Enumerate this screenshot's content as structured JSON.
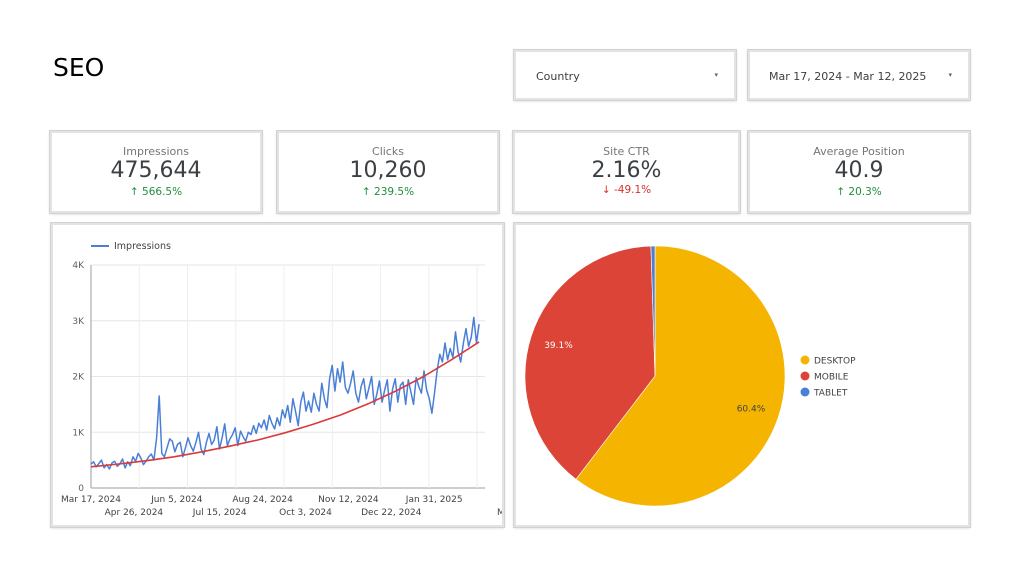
{
  "page": {
    "title": "SEO"
  },
  "filters": {
    "country": {
      "label": "Country"
    },
    "date_range": {
      "label": "Mar 17, 2024 - Mar 12, 2025"
    }
  },
  "scorecards": [
    {
      "label": "Impressions",
      "value": "475,644",
      "delta": "566.5%",
      "direction": "up"
    },
    {
      "label": "Clicks",
      "value": "10,260",
      "delta": "239.5%",
      "direction": "up"
    },
    {
      "label": "Site CTR",
      "value": "2.16%",
      "delta": "-49.1%",
      "direction": "down"
    },
    {
      "label": "Average Position",
      "value": "40.9",
      "delta": "20.3%",
      "direction": "up"
    }
  ],
  "colors": {
    "positive": "#1e8e3e",
    "negative": "#d93025"
  },
  "chart_data": [
    {
      "type": "line",
      "legend": [
        "Impressions"
      ],
      "legend_position": "top-left",
      "grid": true,
      "ylim": [
        0,
        4000
      ],
      "y_ticks": [
        "0",
        "1K",
        "2K",
        "3K",
        "4K"
      ],
      "x_ticks_row1": [
        "Mar 17, 2024",
        "Jun 5, 2024",
        "Aug 24, 2024",
        "Nov 12, 2024",
        "Jan 31, 2025"
      ],
      "x_ticks_row2": [
        "Apr 26, 2024",
        "Jul 15, 2024",
        "Oct 3, 2024",
        "Dec 22, 2024"
      ],
      "x_tick_truncated": "M",
      "series": [
        {
          "name": "Impressions",
          "color": "#4a7fd6",
          "values": [
            430,
            470,
            380,
            440,
            500,
            360,
            420,
            340,
            450,
            480,
            390,
            430,
            520,
            360,
            470,
            400,
            560,
            480,
            620,
            540,
            420,
            480,
            560,
            610,
            500,
            900,
            1650,
            620,
            560,
            720,
            880,
            840,
            650,
            780,
            820,
            560,
            720,
            900,
            760,
            660,
            820,
            1000,
            700,
            600,
            820,
            980,
            780,
            860,
            1100,
            700,
            900,
            1150,
            760,
            880,
            960,
            1080,
            760,
            1020,
            920,
            840,
            1000,
            960,
            1120,
            980,
            1160,
            1080,
            1220,
            1040,
            1300,
            1160,
            1060,
            1260,
            1120,
            1400,
            1260,
            1480,
            1180,
            1600,
            1380,
            1120,
            1540,
            1720,
            1380,
            1560,
            1360,
            1700,
            1500,
            1380,
            1880,
            1600,
            1440,
            1960,
            2200,
            1740,
            2140,
            1900,
            2260,
            1800,
            1700,
            1880,
            2100,
            1700,
            1540,
            1820,
            1960,
            1600,
            1800,
            2000,
            1500,
            1680,
            1920,
            1540,
            1760,
            1940,
            1380,
            1780,
            1960,
            1540,
            1840,
            1900,
            1500,
            1940,
            1720,
            1500,
            1980,
            1820,
            1700,
            2100,
            1760,
            1600,
            1340,
            1700,
            2100,
            2400,
            2260,
            2600,
            2300,
            2500,
            2340,
            2800,
            2440,
            2260,
            2600,
            2860,
            2540,
            2700,
            3060,
            2600,
            2940
          ]
        },
        {
          "name": "Trend",
          "color": "#d93a3a",
          "values": [
            380,
            430,
            490,
            560,
            650,
            750,
            860,
            990,
            1140,
            1310,
            1510,
            1740,
            2000,
            2300,
            2620
          ]
        }
      ]
    },
    {
      "type": "pie",
      "legend_position": "right",
      "slices": [
        {
          "label": "DESKTOP",
          "value": 60.4,
          "display": "60.4%",
          "color": "#f4b400"
        },
        {
          "label": "MOBILE",
          "value": 39.1,
          "display": "39.1%",
          "color": "#db4437"
        },
        {
          "label": "TABLET",
          "value": 0.5,
          "display": "",
          "color": "#4a7fd6"
        }
      ]
    }
  ]
}
